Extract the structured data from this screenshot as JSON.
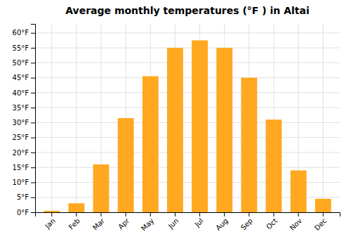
{
  "chart_data": {
    "type": "bar",
    "title": "Average monthly temperatures (°F ) in Altai",
    "categories": [
      "Jan",
      "Feb",
      "Mar",
      "Apr",
      "May",
      "Jun",
      "Jul",
      "Aug",
      "Sep",
      "Oct",
      "Nov",
      "Dec"
    ],
    "values": [
      0.5,
      3.0,
      16.0,
      31.5,
      45.5,
      55.0,
      57.5,
      55.0,
      45.0,
      31.0,
      14.0,
      4.5
    ],
    "color": "#FFA820",
    "ylim": [
      0,
      63
    ],
    "yticks": [
      {
        "value": 0,
        "label": "0°F"
      },
      {
        "value": 5,
        "label": "5°F"
      },
      {
        "value": 10,
        "label": "10°F"
      },
      {
        "value": 15,
        "label": "15°F"
      },
      {
        "value": 20,
        "label": "20°F"
      },
      {
        "value": 25,
        "label": "25°F"
      },
      {
        "value": 30,
        "label": "30°F"
      },
      {
        "value": 35,
        "label": "35°F"
      },
      {
        "value": 40,
        "label": "40°F"
      },
      {
        "value": 45,
        "label": "45°F"
      },
      {
        "value": 50,
        "label": "50°F"
      },
      {
        "value": 55,
        "label": "55°F"
      },
      {
        "value": 60,
        "label": "60°F"
      }
    ],
    "grid": true
  }
}
